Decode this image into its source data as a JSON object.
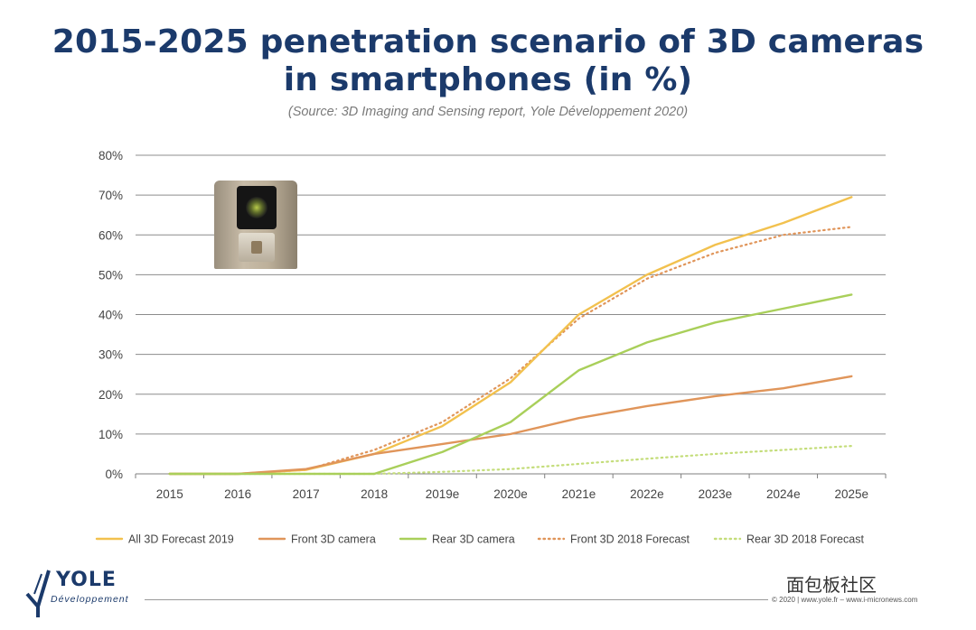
{
  "title_line1": "2015-2025 penetration scenario of 3D cameras",
  "title_line2": "in smartphones (in %)",
  "source": "(Source: 3D Imaging and Sensing report, Yole Développement 2020)",
  "chart_data": {
    "type": "line",
    "title": "2015-2025 penetration scenario of 3D cameras in smartphones (in %)",
    "xlabel": "",
    "ylabel": "",
    "categories": [
      "2015",
      "2016",
      "2017",
      "2018",
      "2019e",
      "2020e",
      "2021e",
      "2022e",
      "2023e",
      "2024e",
      "2025e"
    ],
    "y_ticks": [
      "0%",
      "10%",
      "20%",
      "30%",
      "40%",
      "50%",
      "60%",
      "70%",
      "80%"
    ],
    "ylim": [
      0,
      80
    ],
    "grid": true,
    "legend_position": "bottom",
    "series": [
      {
        "name": "All 3D Forecast 2019",
        "style": "solid",
        "color": "#f2c14e",
        "values": [
          0,
          0,
          1,
          5,
          12,
          23,
          40,
          50,
          57.5,
          63,
          69.5
        ]
      },
      {
        "name": "Front 3D camera",
        "style": "solid",
        "color": "#e0955a",
        "values": [
          0,
          0,
          1.2,
          5,
          7.5,
          10,
          14,
          17,
          19.5,
          21.5,
          24.5
        ]
      },
      {
        "name": "Rear 3D camera",
        "style": "solid",
        "color": "#a9cf5a",
        "values": [
          0,
          0,
          0,
          0,
          5.5,
          13,
          26,
          33,
          38,
          41.5,
          45
        ]
      },
      {
        "name": "Front 3D 2018 Forecast",
        "style": "dotted",
        "color": "#e0955a",
        "values": [
          0,
          0,
          1,
          6,
          13,
          24,
          39,
          49,
          55.5,
          60,
          62
        ]
      },
      {
        "name": "Rear 3D 2018 Forecast",
        "style": "dotted",
        "color": "#c4dd7a",
        "values": [
          0,
          0,
          0,
          0,
          0.5,
          1.2,
          2.5,
          3.8,
          5,
          6,
          7
        ]
      }
    ]
  },
  "logo": {
    "name": "YOLE",
    "sub": "Développement"
  },
  "watermark": "面包板社区",
  "copyright": "© 2020 | www.yole.fr – www.i-micronews.com"
}
